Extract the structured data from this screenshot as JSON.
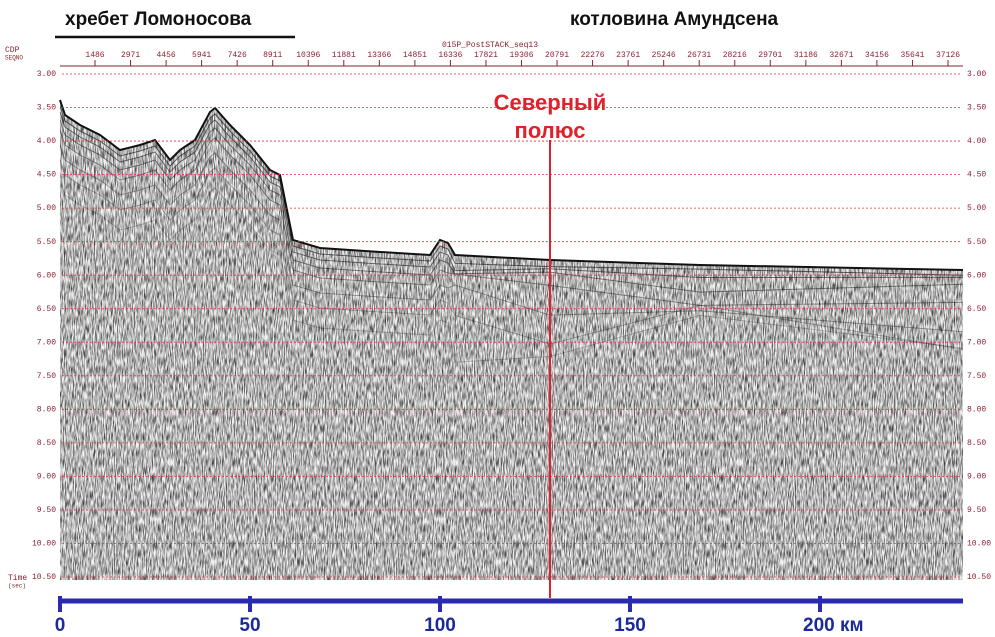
{
  "header": {
    "left": "хребет Ломоносова",
    "right": "котловина Амундсена"
  },
  "section": {
    "title": "015P_PostSTACK_seq13",
    "cdp_label": "CDP",
    "seqno_label": "SEQNO",
    "cdp_ticks": [
      1486,
      2971,
      4456,
      5941,
      7426,
      8911,
      10396,
      11881,
      13366,
      14851,
      16336,
      17821,
      19306,
      20791,
      22276,
      23761,
      25246,
      26731,
      28216,
      29701,
      31186,
      32671,
      34156,
      35641,
      37126
    ],
    "time_label": "Time",
    "time_unit": "(sec)",
    "time_ticks": [
      {
        "value": 3,
        "label": "3.00"
      },
      {
        "value": 3.5,
        "label": "3.50"
      },
      {
        "value": 4,
        "label": "4.00"
      },
      {
        "value": 4.5,
        "label": "4.50"
      },
      {
        "value": 5,
        "label": "5.00"
      },
      {
        "value": 5.5,
        "label": "5.50"
      },
      {
        "value": 6,
        "label": "6.00"
      },
      {
        "value": 6.5,
        "label": "6.50"
      },
      {
        "value": 7,
        "label": "7.00"
      },
      {
        "value": 7.5,
        "label": "7.50"
      },
      {
        "value": 8,
        "label": "8.00"
      },
      {
        "value": 8.5,
        "label": "8.50"
      },
      {
        "value": 9,
        "label": "9.00"
      },
      {
        "value": 9.5,
        "label": "9.50"
      },
      {
        "value": 10,
        "label": "10.00"
      },
      {
        "value": 10.5,
        "label": "10.50"
      }
    ]
  },
  "annotation": {
    "line1": "Северный",
    "line2": "полюс"
  },
  "distance_axis": {
    "ticks": [
      0,
      50,
      100,
      150,
      {
        "value": 200,
        "label": "200 км"
      }
    ]
  }
}
